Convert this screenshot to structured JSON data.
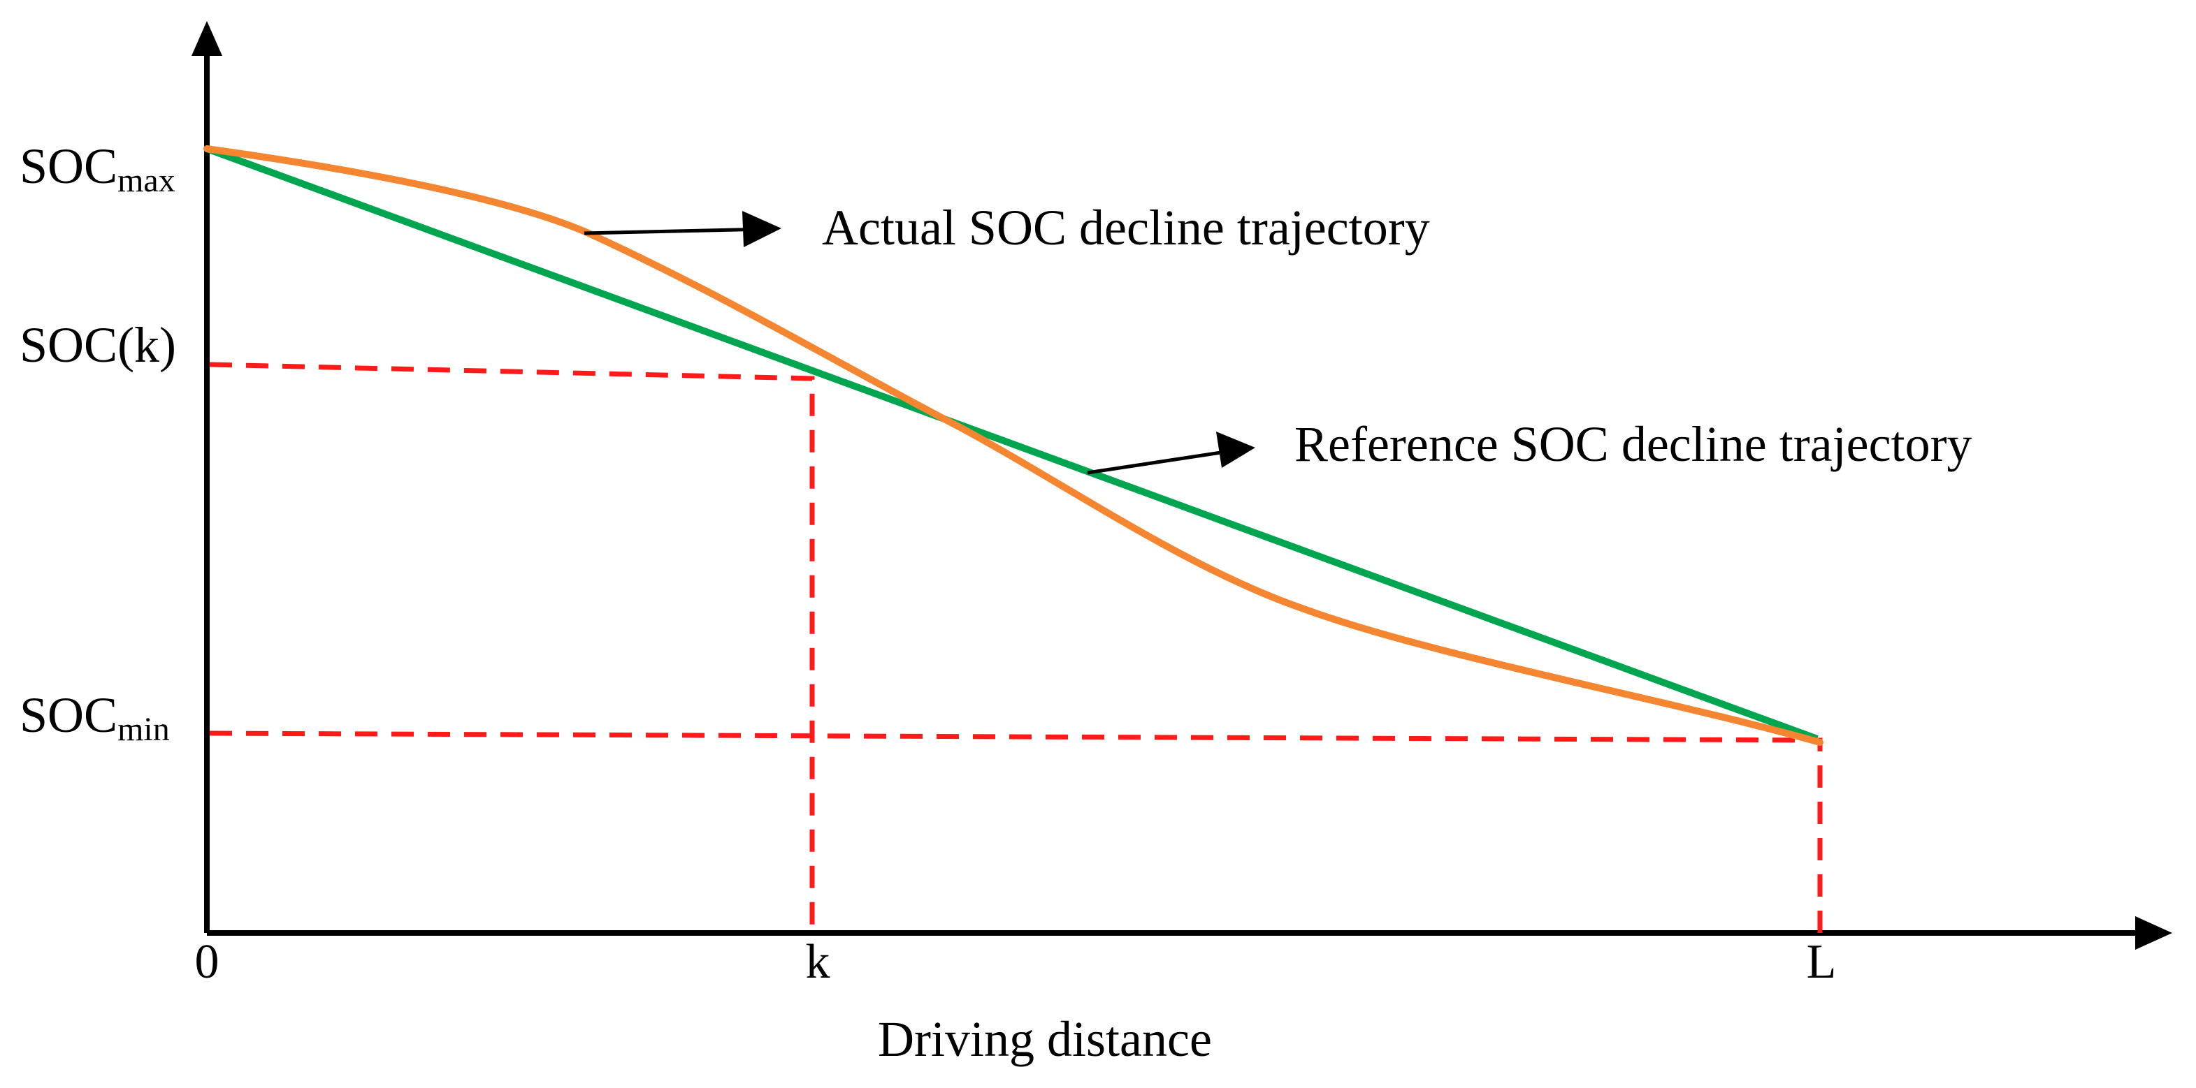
{
  "colors": {
    "axis": "#000000",
    "reference": "#00a64f",
    "actual": "#f58631",
    "guide": "#ff1a1a"
  },
  "y_labels": {
    "soc_max": {
      "main": "SOC",
      "sub": "max"
    },
    "soc_k": {
      "main": "SOC(k)"
    },
    "soc_min": {
      "main": "SOC",
      "sub": "min"
    }
  },
  "x_labels": {
    "origin": "0",
    "k": "k",
    "L": "L"
  },
  "x_axis_title": "Driving distance",
  "annotations": {
    "actual": "Actual SOC decline trajectory",
    "reference": "Reference SOC decline trajectory"
  },
  "curves": [
    {
      "name": "Reference SOC decline trajectory",
      "shape": "linear",
      "from": "SOCmax at 0",
      "to": "SOCmin at L"
    },
    {
      "name": "Actual SOC decline trajectory",
      "shape": "s-curve",
      "from": "SOCmax at 0",
      "to": "SOCmin at L"
    }
  ]
}
